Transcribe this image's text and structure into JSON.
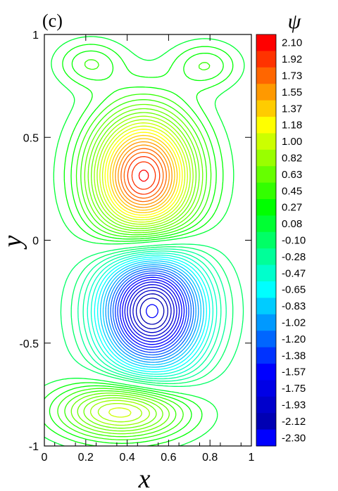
{
  "panel_label": "(c)",
  "chart_data": {
    "type": "contour",
    "xlabel": "x",
    "ylabel": "y",
    "xlim": [
      0,
      1
    ],
    "ylim": [
      -1,
      1
    ],
    "x_ticks": [
      "0",
      "0.2",
      "0.4",
      "0.6",
      "0.8",
      "1"
    ],
    "y_ticks": [
      "1",
      "0.5",
      "0",
      "-0.5",
      "-1"
    ],
    "colorbar_title": "ψ",
    "levels": [
      "2.10",
      "1.92",
      "1.73",
      "1.55",
      "1.37",
      "1.18",
      "1.00",
      "0.82",
      "0.63",
      "0.45",
      "0.27",
      "0.08",
      "-0.10",
      "-0.28",
      "-0.47",
      "-0.65",
      "-0.83",
      "-1.02",
      "-1.20",
      "-1.38",
      "-1.57",
      "-1.75",
      "-1.93",
      "-2.12",
      "-2.30"
    ],
    "level_colors": [
      "#ff0000",
      "#ff3300",
      "#ff6600",
      "#ff9900",
      "#ffcc00",
      "#ffff00",
      "#ccff00",
      "#99ff00",
      "#66ff00",
      "#33ff00",
      "#00ff00",
      "#00ff33",
      "#00ff66",
      "#00ff99",
      "#00ffcc",
      "#00ffff",
      "#00ccff",
      "#0099ff",
      "#0066ff",
      "#0033ff",
      "#0000ff",
      "#0000e6",
      "#0000cc",
      "#0000b3",
      "#0000ff"
    ],
    "vortices": [
      {
        "name": "upper-main",
        "x": 0.48,
        "y": 0.31,
        "psi_peak": 2.1
      },
      {
        "name": "lower-main",
        "x": 0.52,
        "y": -0.34,
        "psi_peak": -2.3
      },
      {
        "name": "top-left-corner",
        "x": 0.22,
        "y": 0.86,
        "psi_peak": 0.1
      },
      {
        "name": "top-right-corner",
        "x": 0.78,
        "y": 0.85,
        "psi_peak": 0.1
      },
      {
        "name": "bottom",
        "x": 0.38,
        "y": -0.83,
        "psi_peak": 1.0
      }
    ]
  }
}
